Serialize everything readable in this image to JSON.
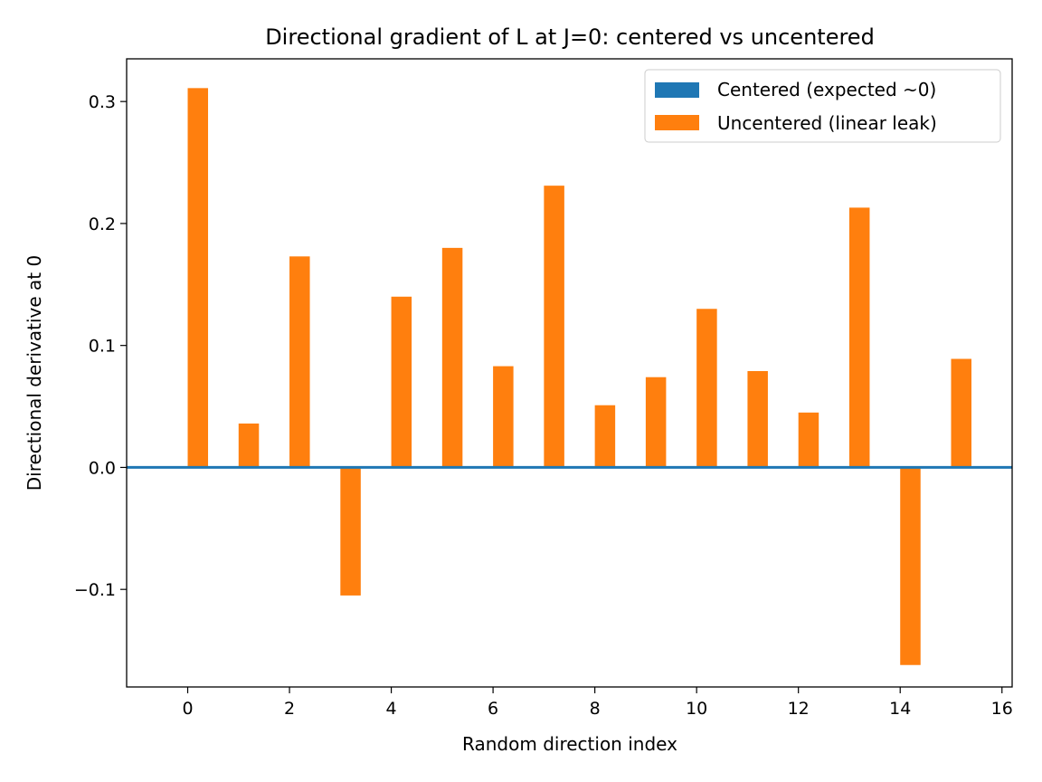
{
  "chart_data": {
    "type": "bar",
    "title": "Directional gradient of L at J=0: centered vs uncentered",
    "xlabel": "Random direction index",
    "ylabel": "Directional derivative at 0",
    "xlim": [
      -1.2,
      16.2
    ],
    "ylim": [
      -0.18,
      0.335
    ],
    "x_ticks": [
      0,
      2,
      4,
      6,
      8,
      10,
      12,
      14,
      16
    ],
    "y_ticks": [
      -0.1,
      0.0,
      0.1,
      0.2,
      0.3
    ],
    "y_tick_labels": [
      "−0.1",
      "0.0",
      "0.1",
      "0.2",
      "0.3"
    ],
    "x": [
      0,
      1,
      2,
      3,
      4,
      5,
      6,
      7,
      8,
      9,
      10,
      11,
      12,
      13,
      14,
      15
    ],
    "bar_offset": 0.2,
    "bar_width": 0.4,
    "grid": false,
    "legend_position": "top-right",
    "series": [
      {
        "name": "Centered (expected ~0)",
        "color": "#1f77b4",
        "values": [
          0,
          0,
          0,
          0,
          0,
          0,
          0,
          0,
          0,
          0,
          0,
          0,
          0,
          0,
          0,
          0
        ]
      },
      {
        "name": "Uncentered (linear leak)",
        "color": "#ff7f0e",
        "values": [
          0.311,
          0.036,
          0.173,
          -0.105,
          0.14,
          0.18,
          0.083,
          0.231,
          0.051,
          0.074,
          0.13,
          0.079,
          0.045,
          0.213,
          -0.162,
          0.089
        ]
      }
    ]
  }
}
